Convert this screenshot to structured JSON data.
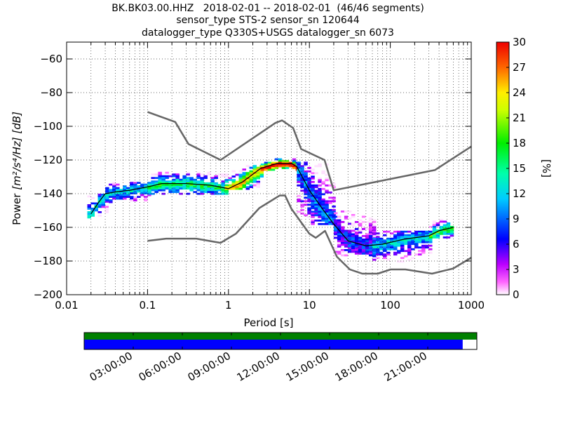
{
  "header": {
    "title_line1": "BK.BK03.00.HHZ   2018-02-01 -- 2018-02-01  (46/46 segments)",
    "title_line2": "sensor_type STS-2 sensor_sn 120644",
    "title_line3": "datalogger_type Q330S+USGS datalogger_sn 6073"
  },
  "axes": {
    "x_label": "Period [s]",
    "y_label_word": "Power",
    "y_label_units": "[m²/s⁴/Hz] [dB]",
    "colorbar_label": "[%]"
  },
  "colors": {
    "noise_model": "#666666",
    "median": "#000000",
    "coverage_bar": "#008000",
    "data_bar": "#0000ff"
  },
  "chart_data": [
    {
      "type": "heatmap",
      "title": "BK.BK03.00.HHZ   2018-02-01 -- 2018-02-01  (46/46 segments)",
      "xlabel": "Period [s]",
      "ylabel": "Power [m^2/s^4/Hz] [dB]",
      "x_scale": "log",
      "xlim": [
        0.01,
        1000
      ],
      "ylim": [
        -200,
        -50
      ],
      "x_ticks": [
        "0.01",
        "0.1",
        "1",
        "10",
        "100",
        "1000"
      ],
      "y_ticks": [
        "−200",
        "−180",
        "−160",
        "−140",
        "−120",
        "−100",
        "−80",
        "−60"
      ],
      "grid": true,
      "colorbar": {
        "label": "[%]",
        "range": [
          0,
          30
        ],
        "ticks": [
          "0",
          "3",
          "6",
          "9",
          "12",
          "15",
          "18",
          "21",
          "24",
          "27",
          "30"
        ],
        "colormap": "pqlx (white-magenta-blue-cyan-green-yellow-red)"
      },
      "series": [
        {
          "kind": "noise_model_high",
          "points": [
            [
              0.1,
              -91.5
            ],
            [
              0.22,
              -97.4
            ],
            [
              0.32,
              -110.5
            ],
            [
              0.8,
              -120
            ],
            [
              3.8,
              -98
            ],
            [
              4.6,
              -96.5
            ],
            [
              6.3,
              -101
            ],
            [
              7.9,
              -113.5
            ],
            [
              15.4,
              -120
            ],
            [
              20,
              -138
            ],
            [
              354.8,
              -126
            ],
            [
              1000,
              -112
            ]
          ]
        },
        {
          "kind": "noise_model_low",
          "points": [
            [
              0.1,
              -168
            ],
            [
              0.17,
              -166.7
            ],
            [
              0.4,
              -166.7
            ],
            [
              0.8,
              -169.2
            ],
            [
              1.24,
              -163.7
            ],
            [
              2.4,
              -148.6
            ],
            [
              4.3,
              -141.1
            ],
            [
              5,
              -141.1
            ],
            [
              6,
              -149
            ],
            [
              10,
              -163.8
            ],
            [
              12,
              -166.2
            ],
            [
              15.6,
              -162.1
            ],
            [
              21.9,
              -177.5
            ],
            [
              31.6,
              -185
            ],
            [
              45,
              -187.5
            ],
            [
              70,
              -187.5
            ],
            [
              101,
              -185
            ],
            [
              154,
              -185
            ],
            [
              328,
              -187.5
            ],
            [
              600,
              -184.4
            ],
            [
              1000,
              -178
            ]
          ]
        },
        {
          "kind": "median_psd",
          "points": [
            [
              0.02,
              -152
            ],
            [
              0.025,
              -145
            ],
            [
              0.03,
              -140
            ],
            [
              0.04,
              -139
            ],
            [
              0.06,
              -138
            ],
            [
              0.1,
              -136
            ],
            [
              0.15,
              -134
            ],
            [
              0.3,
              -134
            ],
            [
              0.6,
              -135
            ],
            [
              1,
              -137
            ],
            [
              1.5,
              -133
            ],
            [
              2.5,
              -125
            ],
            [
              4,
              -122
            ],
            [
              6,
              -122
            ],
            [
              7,
              -124
            ],
            [
              10,
              -138
            ],
            [
              15,
              -150
            ],
            [
              20,
              -158
            ],
            [
              30,
              -168
            ],
            [
              50,
              -171
            ],
            [
              80,
              -170
            ],
            [
              150,
              -167
            ],
            [
              300,
              -165
            ],
            [
              400,
              -162
            ],
            [
              600,
              -160
            ]
          ]
        }
      ],
      "density_bands": [
        {
          "x_range": [
            0.018,
            0.03
          ],
          "y_range": [
            -154,
            -140
          ],
          "percent": 9
        },
        {
          "x_range": [
            0.03,
            0.1
          ],
          "y_range": [
            -145,
            -133
          ],
          "percent": 8
        },
        {
          "x_range": [
            0.1,
            0.9
          ],
          "y_range": [
            -140,
            -127
          ],
          "percent": 11
        },
        {
          "x_range": [
            0.9,
            2.5
          ],
          "y_range": [
            -137,
            -123
          ],
          "percent": 17
        },
        {
          "x_range": [
            2.5,
            7
          ],
          "y_range": [
            -126,
            -119
          ],
          "percent": 22
        },
        {
          "x_range": [
            7,
            20
          ],
          "y_range": [
            -158,
            -121
          ],
          "percent": 6
        },
        {
          "x_range": [
            20,
            60
          ],
          "y_range": [
            -177,
            -150
          ],
          "percent": 5
        },
        {
          "x_range": [
            60,
            300
          ],
          "y_range": [
            -180,
            -162
          ],
          "percent": 8
        },
        {
          "x_range": [
            300,
            600
          ],
          "y_range": [
            -166,
            -155
          ],
          "percent": 12
        }
      ]
    },
    {
      "type": "bar",
      "title": "",
      "xlabel": "",
      "categories": [
        "03:00:00",
        "06:00:00",
        "09:00:00",
        "12:00:00",
        "15:00:00",
        "18:00:00",
        "21:00:00"
      ],
      "coverage": {
        "start": "00:00:00",
        "end": "24:00:00",
        "covered_fraction": 1.0
      },
      "data": {
        "start": "00:00:00",
        "end": "23:08:00",
        "covered_fraction": 0.964
      }
    }
  ]
}
